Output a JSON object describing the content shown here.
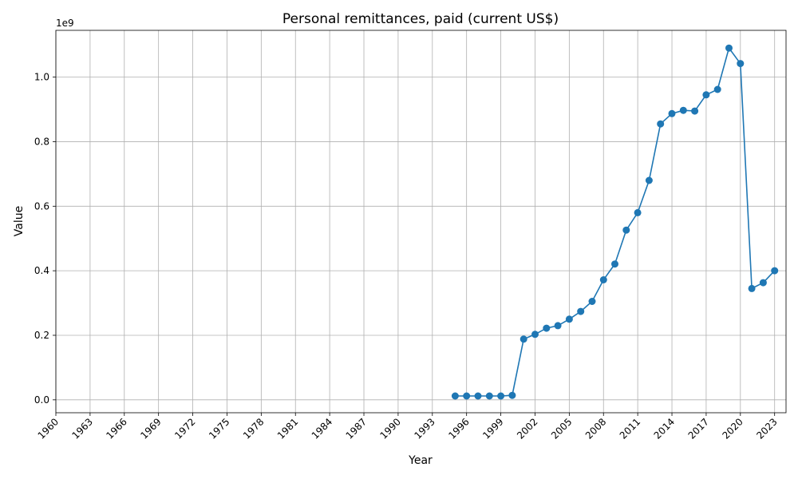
{
  "chart_data": {
    "type": "line",
    "title": "Personal remittances, paid (current US$)",
    "xlabel": "Year",
    "ylabel": "Value",
    "y_scale_label": "1e9",
    "xlim": [
      1960,
      2024
    ],
    "ylim": [
      -40000000,
      1145000000
    ],
    "x_ticks": [
      1960,
      1963,
      1966,
      1969,
      1972,
      1975,
      1978,
      1981,
      1984,
      1987,
      1990,
      1993,
      1996,
      1999,
      2002,
      2005,
      2008,
      2011,
      2014,
      2017,
      2020,
      2023
    ],
    "y_ticks": [
      0,
      200000000,
      400000000,
      600000000,
      800000000,
      1000000000
    ],
    "y_tick_labels": [
      "0.0",
      "0.2",
      "0.4",
      "0.6",
      "0.8",
      "1.0"
    ],
    "grid": true,
    "line_color": "#1f77b4",
    "series": [
      {
        "x": [
          1995,
          1996,
          1997,
          1998,
          1999,
          2000,
          2001,
          2002,
          2003,
          2004,
          2005,
          2006,
          2007,
          2008,
          2009,
          2010,
          2011,
          2012,
          2013,
          2014,
          2015,
          2016,
          2017,
          2018,
          2019,
          2020,
          2021,
          2022,
          2023
        ],
        "values": [
          12000000,
          12000000,
          12000000,
          12000000,
          12000000,
          14000000,
          188000000,
          203000000,
          222000000,
          230000000,
          250000000,
          274000000,
          305000000,
          372000000,
          421000000,
          526000000,
          580000000,
          680000000,
          855000000,
          887000000,
          897000000,
          895000000,
          945000000,
          962000000,
          1090000000,
          1042000000,
          345000000,
          363000000,
          400000000
        ]
      }
    ]
  }
}
